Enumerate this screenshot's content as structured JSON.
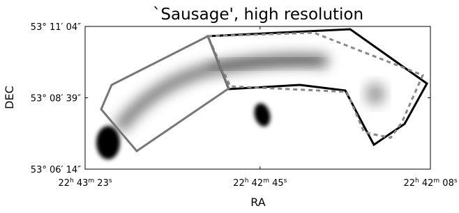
{
  "chart_data": {
    "type": "image",
    "title": "`Sausage', high resolution",
    "xlabel": "RA",
    "ylabel": "DEC",
    "xlim": [
      81803,
      81728
    ],
    "ylim": [
      191174,
      191464
    ],
    "xticks": [
      {
        "value": 81803,
        "label": "22h 43m 23s"
      },
      {
        "value": 81765,
        "label": "22h 42m 45s"
      },
      {
        "value": 81728,
        "label": "22h 42m 08s"
      }
    ],
    "yticks": [
      {
        "value": 191174,
        "label": "53° 06′ 14″"
      },
      {
        "value": 191319,
        "label": "53° 08′ 39″"
      },
      {
        "value": 191464,
        "label": "53° 11′ 04″"
      }
    ]
  }
}
